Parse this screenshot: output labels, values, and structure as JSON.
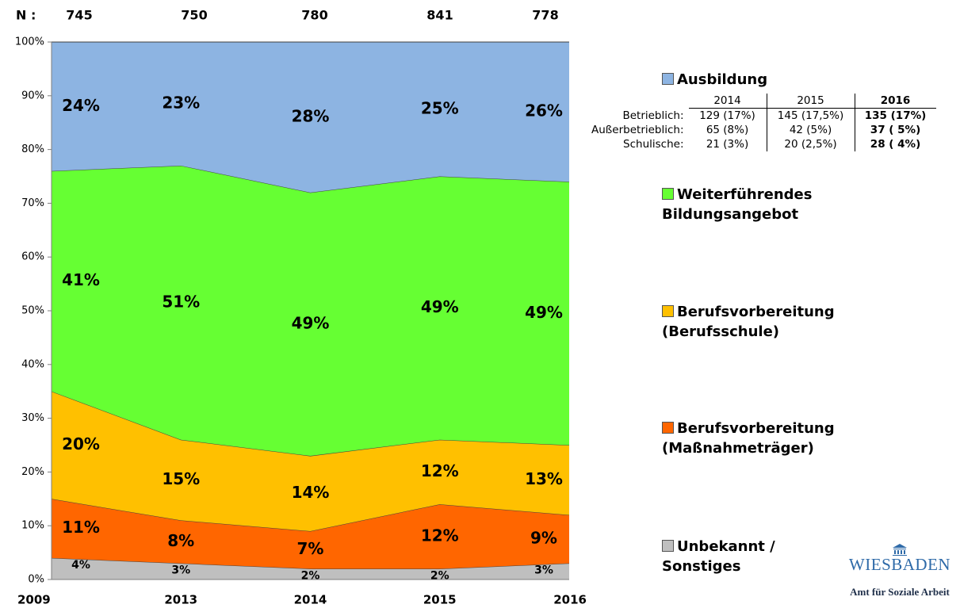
{
  "chart_data": {
    "type": "stacked-area",
    "n_label": "N :",
    "n_values": [
      745,
      750,
      780,
      841,
      778
    ],
    "categories": [
      "2009",
      "2013",
      "2014",
      "2015",
      "2016"
    ],
    "series": [
      {
        "name": "Unbekannt / Sonstiges",
        "color": "#bfbfbf",
        "values": [
          4,
          3,
          2,
          2,
          3
        ],
        "value_labels": [
          "4%",
          "3%",
          "2%",
          "2%",
          "3%"
        ]
      },
      {
        "name": "Berufsvorbereitung (Maßnahmeträger)",
        "color": "#ff6600",
        "values": [
          11,
          8,
          7,
          12,
          9
        ],
        "value_labels": [
          "11%",
          "8%",
          "7%",
          "12%",
          "9%"
        ]
      },
      {
        "name": "Berufsvorbereitung (Berufsschule)",
        "color": "#ffc000",
        "values": [
          20,
          15,
          14,
          12,
          13
        ],
        "value_labels": [
          "20%",
          "15%",
          "14%",
          "12%",
          "13%"
        ]
      },
      {
        "name": "Weiterführendes Bildungsangebot",
        "color": "#66ff33",
        "values": [
          41,
          51,
          49,
          49,
          49
        ],
        "value_labels": [
          "41%",
          "51%",
          "49%",
          "49%",
          "49%"
        ]
      },
      {
        "name": "Ausbildung",
        "color": "#8db4e2",
        "values": [
          24,
          23,
          28,
          25,
          26
        ],
        "value_labels": [
          "24%",
          "23%",
          "28%",
          "25%",
          "26%"
        ]
      }
    ],
    "ylim": [
      0,
      100
    ],
    "yticks": [
      {
        "value": 0,
        "label": "0%"
      },
      {
        "value": 10,
        "label": "10%"
      },
      {
        "value": 20,
        "label": "20%"
      },
      {
        "value": 30,
        "label": "30%"
      },
      {
        "value": 40,
        "label": "40%"
      },
      {
        "value": 50,
        "label": "50%"
      },
      {
        "value": 60,
        "label": "60%"
      },
      {
        "value": 70,
        "label": "70%"
      },
      {
        "value": 80,
        "label": "80%"
      },
      {
        "value": 90,
        "label": "90%"
      },
      {
        "value": 100,
        "label": "100%"
      }
    ],
    "legend": "right"
  },
  "table": {
    "header": [
      "2014",
      "2015",
      "2016"
    ],
    "rows": [
      [
        "Betrieblich:",
        "129 (17%)",
        "145 (17,5%)",
        "135 (17%)"
      ],
      [
        "Außerbetrieblich:",
        "65 (8%)",
        "42 (5%)",
        "37 ( 5%)"
      ],
      [
        "Schulische:",
        "21 (3%)",
        "20 (2,5%)",
        "28 ( 4%)"
      ]
    ]
  },
  "logo": {
    "city": "WIESBADEN",
    "department": "Amt für Soziale Arbeit"
  }
}
